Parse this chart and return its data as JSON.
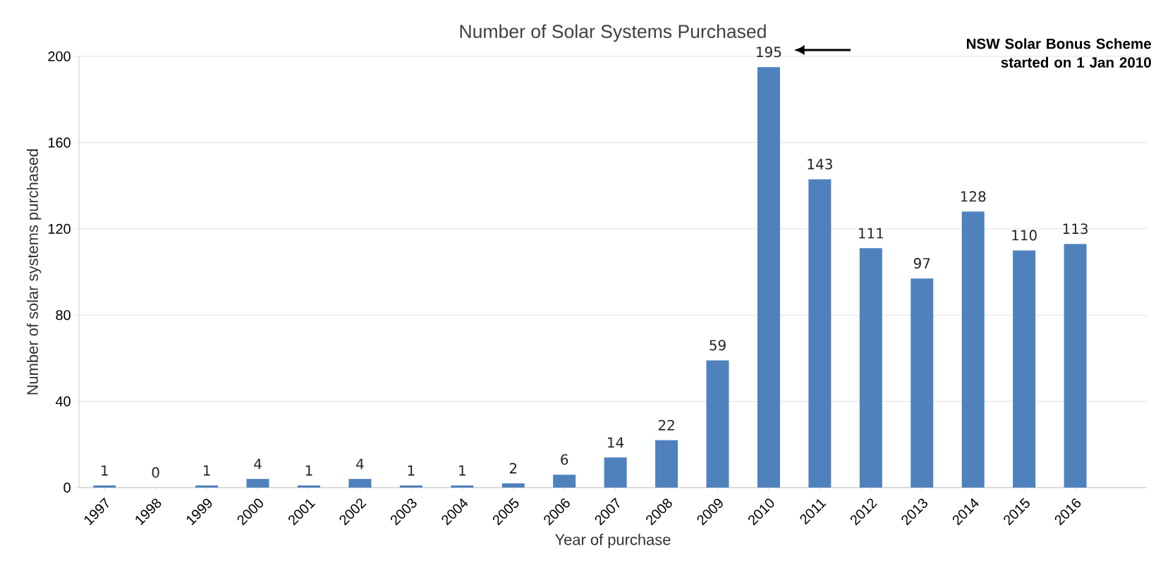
{
  "chart_data": {
    "type": "bar",
    "title": "Number of Solar Systems Purchased",
    "xlabel": "Year of purchase",
    "ylabel": "Number of solar systems purchased",
    "categories": [
      "1997",
      "1998",
      "1999",
      "2000",
      "2001",
      "2002",
      "2003",
      "2004",
      "2005",
      "2006",
      "2007",
      "2008",
      "2009",
      "2010",
      "2011",
      "2012",
      "2013",
      "2014",
      "2015",
      "2016"
    ],
    "values": [
      1,
      0,
      1,
      4,
      1,
      4,
      1,
      1,
      2,
      6,
      14,
      22,
      59,
      195,
      143,
      111,
      97,
      128,
      110,
      113
    ],
    "color": "#4f81bd",
    "ylim": [
      0,
      200
    ],
    "yticks": [
      0,
      40,
      80,
      120,
      160,
      200
    ],
    "grid": "y",
    "data_labels": true,
    "annotations": [
      "NSW Solar Bonus Scheme started on 1 Jan 2010"
    ]
  }
}
